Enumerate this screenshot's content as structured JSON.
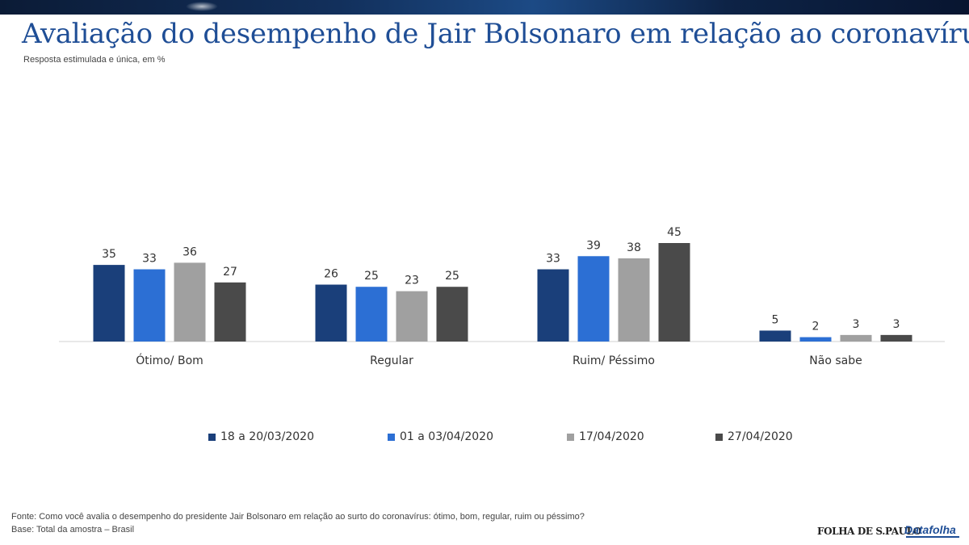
{
  "header": {
    "title": "Avaliação do desempenho de Jair Bolsonaro em relação ao coronavírus",
    "subtitle": "Resposta estimulada e única, em %"
  },
  "chart_data": {
    "type": "bar",
    "title": "Avaliação do desempenho de Jair Bolsonaro em relação ao coronavírus",
    "subtitle": "Resposta estimulada e única, em %",
    "categories": [
      "Ótimo/ Bom",
      "Regular",
      "Ruim/ Péssimo",
      "Não sabe"
    ],
    "series": [
      {
        "name": "18 a 20/03/2020",
        "color": "#1a3f7a",
        "values": [
          35,
          26,
          33,
          5
        ]
      },
      {
        "name": "01 a 03/04/2020",
        "color": "#2c6fd4",
        "values": [
          33,
          25,
          39,
          2
        ]
      },
      {
        "name": "17/04/2020",
        "color": "#a0a0a0",
        "values": [
          36,
          23,
          38,
          3
        ]
      },
      {
        "name": "27/04/2020",
        "color": "#4a4a4a",
        "values": [
          27,
          25,
          45,
          3
        ]
      }
    ],
    "ylim": [
      0,
      45
    ],
    "grid": false,
    "legend": "bottom",
    "data_labels": true
  },
  "footer": {
    "source": "Fonte: Como você avalia o desempenho do presidente Jair Bolsonaro em relação ao surto do coronavírus: ótimo, bom, regular, ruim ou péssimo?",
    "base": "Base: Total da amostra – Brasil",
    "logo_folha": "FOLHA DE S.PAULO",
    "logo_datafolha": "Datafolha"
  }
}
